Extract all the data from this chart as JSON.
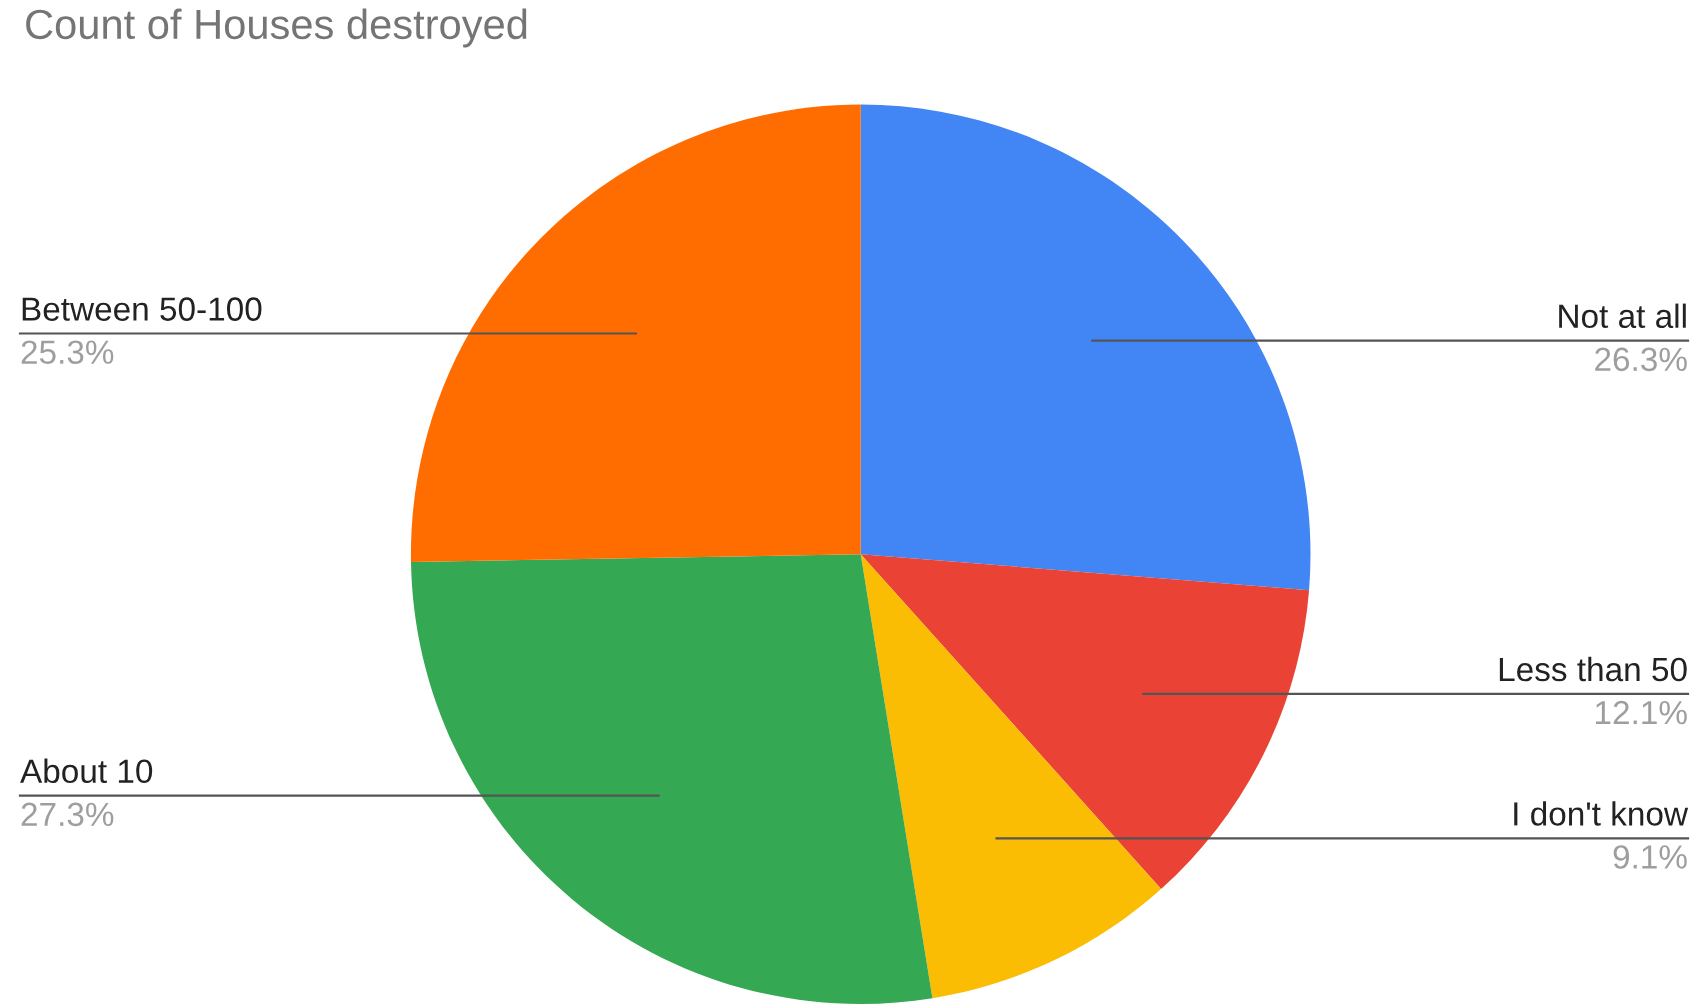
{
  "chart_data": {
    "type": "pie",
    "title": "Count of Houses destroyed",
    "categories": [
      "Not at all",
      "Less than 50",
      "I don't know",
      "About 10",
      "Between 50-100"
    ],
    "values": [
      26.3,
      12.1,
      9.1,
      27.3,
      25.3
    ],
    "colors": [
      "#4285f4",
      "#ea4335",
      "#fbbc04",
      "#34a853",
      "#ff6d01"
    ],
    "value_labels": [
      "26.3%",
      "12.1%",
      "9.1%",
      "27.3%",
      "25.3%"
    ],
    "legend": false
  }
}
